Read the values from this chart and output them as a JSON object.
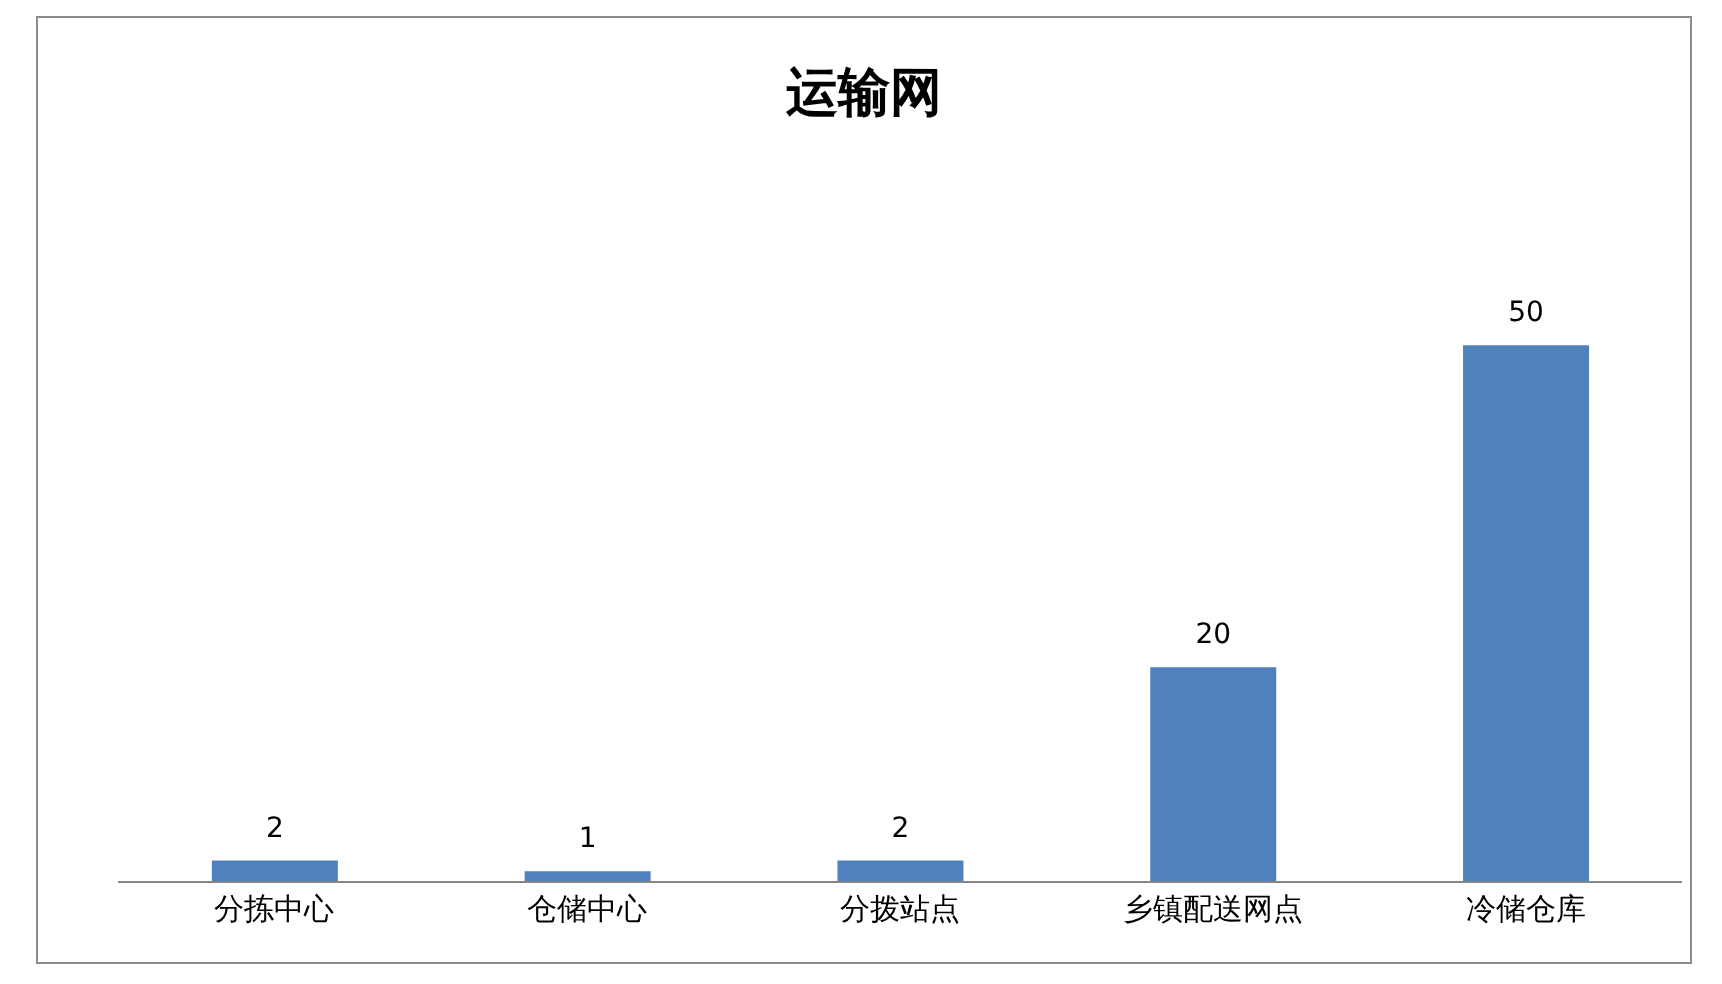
{
  "chart_data": {
    "type": "bar",
    "title": "运输网",
    "categories": [
      "分拣中心",
      "仓储中心",
      "分拨站点",
      "乡镇配送网点",
      "冷储仓库"
    ],
    "values": [
      2,
      1,
      2,
      20,
      50
    ],
    "color": "#4f81bd",
    "data_labels": true,
    "tick_labels": "x"
  }
}
